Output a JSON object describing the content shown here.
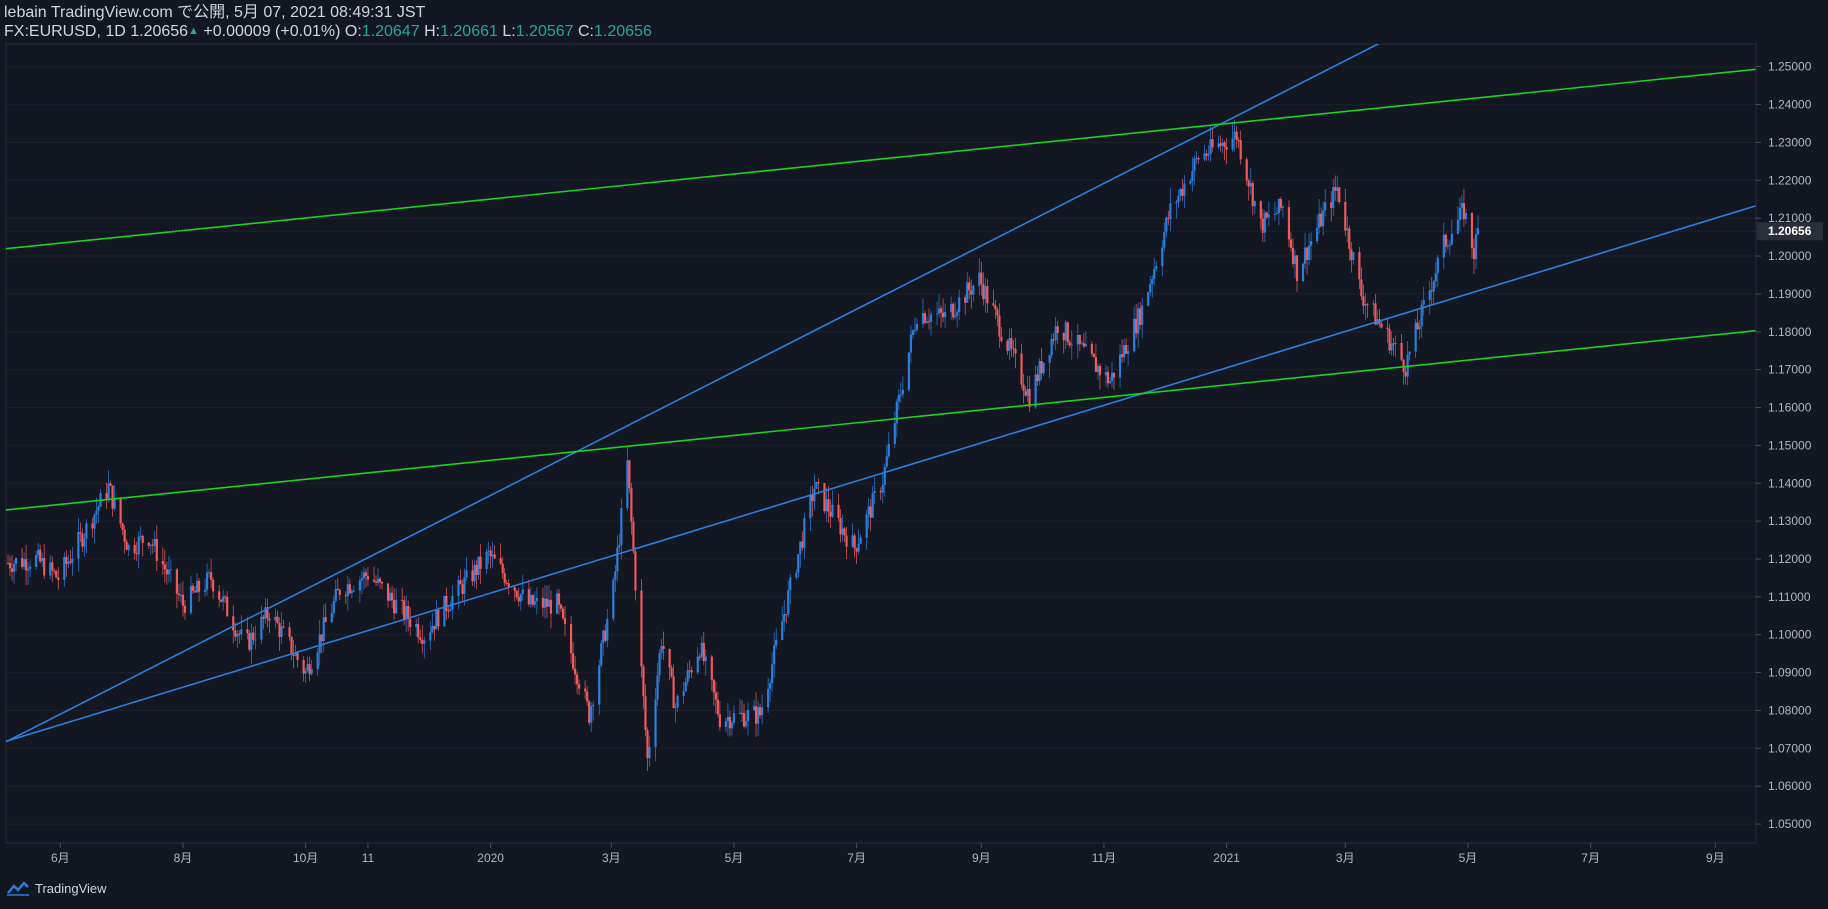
{
  "header": {
    "line1": "lebain TradingView.com で公開, 5月 07, 2021 08:49:31 JST",
    "symbol": "FX:EURUSD, 1D 1.20656",
    "change": "+0.00009 (+0.01%)",
    "o_label": "O:",
    "o_value": "1.20647",
    "h_label": "H:",
    "h_value": "1.20661",
    "l_label": "L:",
    "l_value": "1.20567",
    "c_label": "C:",
    "c_value": "1.20656"
  },
  "footer": {
    "brand": "TradingView"
  },
  "colors": {
    "background": "#131722",
    "up_candle": "#2a7fde",
    "down_candle": "#f05a5a",
    "channel_blue": "#2a7fde",
    "channel_green": "#19d31d",
    "axis_text": "#b2b5be"
  },
  "chart_data": {
    "type": "candlestick",
    "symbol": "FX:EURUSD",
    "interval": "1D",
    "last_price": 1.20656,
    "y_range": [
      1.045,
      1.256
    ],
    "y_ticks": [
      1.05,
      1.06,
      1.07,
      1.08,
      1.09,
      1.1,
      1.11,
      1.12,
      1.13,
      1.14,
      1.15,
      1.16,
      1.17,
      1.18,
      1.19,
      1.2,
      1.21,
      1.22,
      1.23,
      1.24,
      1.25
    ],
    "y_tick_labels": [
      "1.05000",
      "1.06000",
      "1.07000",
      "1.08000",
      "1.09000",
      "1.10000",
      "1.11000",
      "1.12000",
      "1.13000",
      "1.14000",
      "1.15000",
      "1.16000",
      "1.17000",
      "1.18000",
      "1.19000",
      "1.20000",
      "1.21000",
      "1.22000",
      "1.23000",
      "1.24000",
      "1.25000"
    ],
    "x_ticks": [
      {
        "label": "6月",
        "date": "2019-06-01"
      },
      {
        "label": "8月",
        "date": "2019-08-01"
      },
      {
        "label": "10月",
        "date": "2019-10-01"
      },
      {
        "label": "11",
        "date": "2019-11-01"
      },
      {
        "label": "2020",
        "date": "2020-01-01"
      },
      {
        "label": "3月",
        "date": "2020-03-01"
      },
      {
        "label": "5月",
        "date": "2020-05-01"
      },
      {
        "label": "7月",
        "date": "2020-07-01"
      },
      {
        "label": "9月",
        "date": "2020-09-01"
      },
      {
        "label": "11月",
        "date": "2020-11-01"
      },
      {
        "label": "2021",
        "date": "2021-01-01"
      },
      {
        "label": "3月",
        "date": "2021-03-01"
      },
      {
        "label": "5月",
        "date": "2021-05-01"
      },
      {
        "label": "7月",
        "date": "2021-07-01"
      },
      {
        "label": "9月",
        "date": "2021-09-01"
      }
    ],
    "close_path": [
      [
        "2019-05-06",
        1.119
      ],
      [
        "2019-05-20",
        1.12
      ],
      [
        "2019-05-31",
        1.115
      ],
      [
        "2019-06-14",
        1.128
      ],
      [
        "2019-06-25",
        1.139
      ],
      [
        "2019-07-05",
        1.123
      ],
      [
        "2019-07-15",
        1.126
      ],
      [
        "2019-08-01",
        1.108
      ],
      [
        "2019-08-15",
        1.115
      ],
      [
        "2019-09-01",
        1.097
      ],
      [
        "2019-09-13",
        1.106
      ],
      [
        "2019-10-01",
        1.09
      ],
      [
        "2019-10-18",
        1.112
      ],
      [
        "2019-11-01",
        1.116
      ],
      [
        "2019-11-29",
        1.1
      ],
      [
        "2019-12-10",
        1.108
      ],
      [
        "2019-12-31",
        1.121
      ],
      [
        "2020-01-20",
        1.108
      ],
      [
        "2020-02-03",
        1.108
      ],
      [
        "2020-02-19",
        1.079
      ],
      [
        "2020-03-02",
        1.112
      ],
      [
        "2020-03-09",
        1.145
      ],
      [
        "2020-03-19",
        1.067
      ],
      [
        "2020-03-26",
        1.099
      ],
      [
        "2020-04-02",
        1.081
      ],
      [
        "2020-04-14",
        1.097
      ],
      [
        "2020-04-24",
        1.078
      ],
      [
        "2020-05-14",
        1.079
      ],
      [
        "2020-06-10",
        1.139
      ],
      [
        "2020-06-30",
        1.123
      ],
      [
        "2020-07-14",
        1.141
      ],
      [
        "2020-07-31",
        1.185
      ],
      [
        "2020-08-14",
        1.184
      ],
      [
        "2020-08-31",
        1.194
      ],
      [
        "2020-09-25",
        1.163
      ],
      [
        "2020-10-09",
        1.182
      ],
      [
        "2020-11-04",
        1.167
      ],
      [
        "2020-11-20",
        1.186
      ],
      [
        "2020-12-04",
        1.212
      ],
      [
        "2020-12-18",
        1.226
      ],
      [
        "2021-01-06",
        1.232
      ],
      [
        "2021-01-18",
        1.208
      ],
      [
        "2021-01-29",
        1.213
      ],
      [
        "2021-02-05",
        1.196
      ],
      [
        "2021-02-19",
        1.212
      ],
      [
        "2021-02-25",
        1.218
      ],
      [
        "2021-03-09",
        1.19
      ],
      [
        "2021-03-31",
        1.171
      ],
      [
        "2021-04-19",
        1.203
      ],
      [
        "2021-04-29",
        1.212
      ],
      [
        "2021-05-04",
        1.201
      ],
      [
        "2021-05-06",
        1.2066
      ]
    ],
    "trendlines": [
      {
        "color": "blue",
        "p1": [
          "2019-05-06",
          1.072
        ],
        "p2": [
          "2021-02-10",
          1.177
        ]
      },
      {
        "color": "blue",
        "p1": [
          "2019-05-06",
          1.072
        ],
        "p2": [
          "2020-11-04",
          1.22
        ]
      },
      {
        "color": "green",
        "p1": [
          "2019-05-06",
          1.202
        ],
        "p2": [
          "2021-10-04",
          1.25
        ]
      },
      {
        "color": "green",
        "p1": [
          "2019-05-06",
          1.133
        ],
        "p2": [
          "2021-10-04",
          1.181
        ]
      }
    ]
  }
}
